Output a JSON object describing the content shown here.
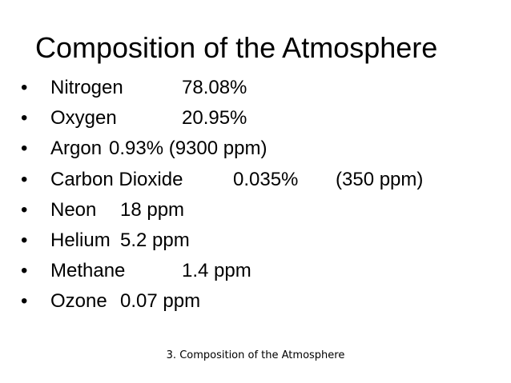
{
  "slide": {
    "title": "Composition of the Atmosphere",
    "bullet_glyph": "•",
    "items": [
      {
        "name": "Nitrogen",
        "value": "78.08%",
        "extra": ""
      },
      {
        "name": "Oxygen",
        "value": "20.95%",
        "extra": ""
      },
      {
        "name": "Argon",
        "value": "0.93% (9300 ppm)",
        "extra": ""
      },
      {
        "name": "Carbon Dioxide",
        "value": "0.035%",
        "extra": "(350 ppm)"
      },
      {
        "name": "Neon",
        "value": "18 ppm",
        "extra": ""
      },
      {
        "name": "Helium",
        "value": "5.2 ppm",
        "extra": ""
      },
      {
        "name": "Methane",
        "value": "1.4 ppm",
        "extra": ""
      },
      {
        "name": "Ozone",
        "value": "0.07 ppm",
        "extra": ""
      }
    ],
    "footer": "3. Composition of the Atmosphere"
  }
}
